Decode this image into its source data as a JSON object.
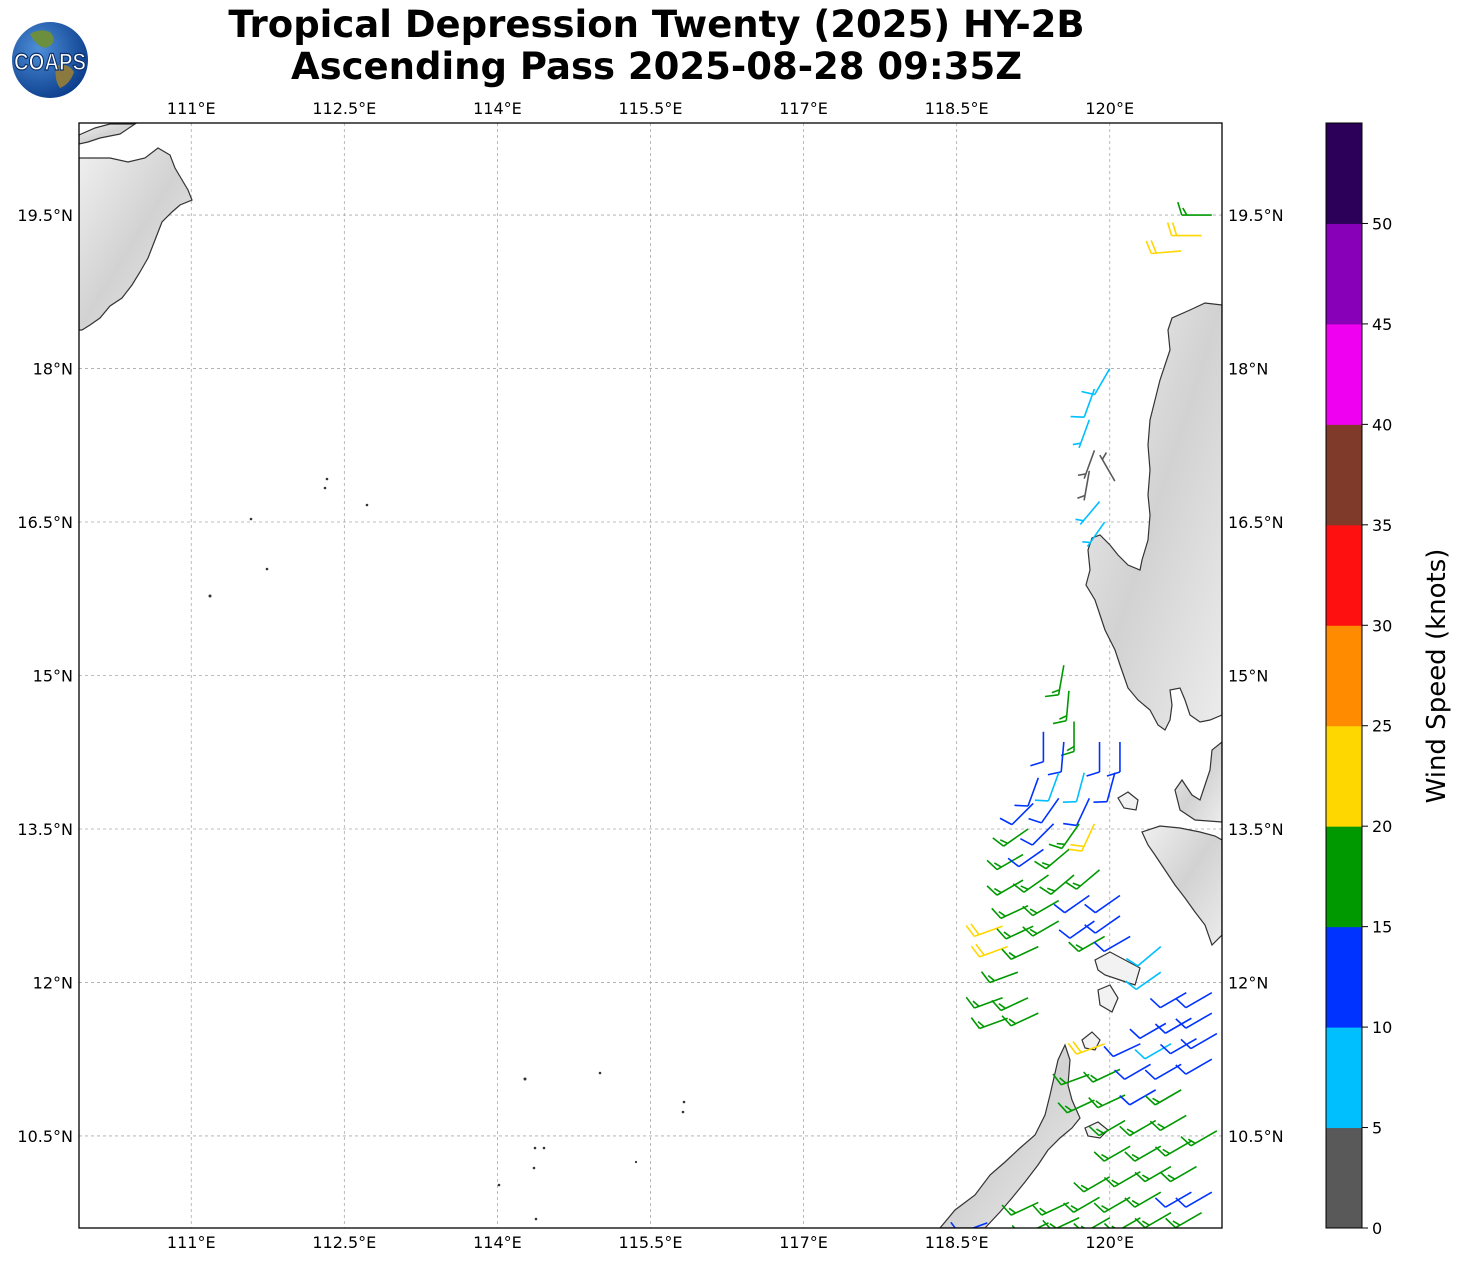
{
  "header": {
    "title_line1": "Tropical Depression Twenty (2025) HY-2B",
    "title_line2": "Ascending Pass 2025-08-28 09:35Z",
    "logo_text": "COAPS"
  },
  "map": {
    "lon_ticks": [
      "111°E",
      "112.5°E",
      "114°E",
      "115.5°E",
      "117°E",
      "118.5°E",
      "120°E"
    ],
    "lon_values": [
      111,
      112.5,
      114,
      115.5,
      117,
      118.5,
      120
    ],
    "lat_ticks": [
      "10.5°N",
      "12°N",
      "13.5°N",
      "15°N",
      "16.5°N",
      "18°N",
      "19.5°N"
    ],
    "lat_values": [
      10.5,
      12,
      13.5,
      15,
      16.5,
      18,
      19.5
    ],
    "extent": {
      "lon_min": 109.9,
      "lon_max": 121.1,
      "lat_min": 9.6,
      "lat_max": 20.4
    },
    "coast_color": "#333333",
    "land_shade": "#cccccc"
  },
  "colorbar": {
    "label": "Wind Speed (knots)",
    "tick_labels": [
      "0",
      "5",
      "10",
      "15",
      "20",
      "25",
      "30",
      "35",
      "40",
      "45",
      "50"
    ],
    "colors": [
      "#595959",
      "#00bfff",
      "#0033ff",
      "#009900",
      "#ffd700",
      "#ff8c00",
      "#ff1010",
      "#803a2a",
      "#f000f0",
      "#8800b8",
      "#2c0058"
    ]
  },
  "chart_data": {
    "type": "scatter",
    "title": "Tropical Depression Twenty (2025) HY-2B Ascending Pass 2025-08-28 09:35Z",
    "xlabel": "",
    "ylabel": "",
    "xlim": [
      109.9,
      121.1
    ],
    "ylim": [
      9.6,
      20.4
    ],
    "colorbar_label": "Wind Speed (knots)",
    "wind_barbs": [
      {
        "lon": 121.0,
        "lat": 19.5,
        "kt": 17,
        "dir": 270
      },
      {
        "lon": 120.9,
        "lat": 19.3,
        "kt": 22,
        "dir": 270
      },
      {
        "lon": 120.7,
        "lat": 19.15,
        "kt": 22,
        "dir": 265
      },
      {
        "lon": 120.0,
        "lat": 18.0,
        "kt": 8,
        "dir": 210
      },
      {
        "lon": 119.85,
        "lat": 17.8,
        "kt": 8,
        "dir": 200
      },
      {
        "lon": 119.8,
        "lat": 17.5,
        "kt": 7,
        "dir": 200
      },
      {
        "lon": 119.85,
        "lat": 17.2,
        "kt": 3,
        "dir": 200
      },
      {
        "lon": 119.8,
        "lat": 17.0,
        "kt": 3,
        "dir": 190
      },
      {
        "lon": 120.05,
        "lat": 16.9,
        "kt": 3,
        "dir": 330
      },
      {
        "lon": 119.9,
        "lat": 16.7,
        "kt": 7,
        "dir": 220
      },
      {
        "lon": 119.95,
        "lat": 16.5,
        "kt": 7,
        "dir": 215
      },
      {
        "lon": 119.55,
        "lat": 15.1,
        "kt": 17,
        "dir": 190
      },
      {
        "lon": 119.6,
        "lat": 14.85,
        "kt": 17,
        "dir": 185
      },
      {
        "lon": 119.65,
        "lat": 14.55,
        "kt": 17,
        "dir": 180
      },
      {
        "lon": 119.35,
        "lat": 14.45,
        "kt": 12,
        "dir": 180
      },
      {
        "lon": 119.55,
        "lat": 14.35,
        "kt": 12,
        "dir": 185
      },
      {
        "lon": 119.9,
        "lat": 14.35,
        "kt": 12,
        "dir": 180
      },
      {
        "lon": 120.1,
        "lat": 14.35,
        "kt": 12,
        "dir": 180
      },
      {
        "lon": 119.3,
        "lat": 14.0,
        "kt": 12,
        "dir": 200
      },
      {
        "lon": 119.5,
        "lat": 14.05,
        "kt": 8,
        "dir": 200
      },
      {
        "lon": 119.75,
        "lat": 14.05,
        "kt": 8,
        "dir": 195
      },
      {
        "lon": 120.05,
        "lat": 14.05,
        "kt": 12,
        "dir": 195
      },
      {
        "lon": 119.25,
        "lat": 13.75,
        "kt": 12,
        "dir": 225
      },
      {
        "lon": 119.5,
        "lat": 13.8,
        "kt": 12,
        "dir": 215
      },
      {
        "lon": 119.8,
        "lat": 13.8,
        "kt": 12,
        "dir": 205
      },
      {
        "lon": 119.2,
        "lat": 13.5,
        "kt": 17,
        "dir": 235
      },
      {
        "lon": 119.45,
        "lat": 13.55,
        "kt": 12,
        "dir": 225
      },
      {
        "lon": 119.7,
        "lat": 13.55,
        "kt": 17,
        "dir": 215
      },
      {
        "lon": 119.85,
        "lat": 13.55,
        "kt": 22,
        "dir": 205
      },
      {
        "lon": 119.15,
        "lat": 13.25,
        "kt": 17,
        "dir": 240
      },
      {
        "lon": 119.35,
        "lat": 13.3,
        "kt": 12,
        "dir": 235
      },
      {
        "lon": 119.6,
        "lat": 13.3,
        "kt": 17,
        "dir": 230
      },
      {
        "lon": 119.15,
        "lat": 13.0,
        "kt": 17,
        "dir": 240
      },
      {
        "lon": 119.4,
        "lat": 13.05,
        "kt": 17,
        "dir": 235
      },
      {
        "lon": 119.65,
        "lat": 13.05,
        "kt": 17,
        "dir": 230
      },
      {
        "lon": 119.9,
        "lat": 13.1,
        "kt": 17,
        "dir": 230
      },
      {
        "lon": 119.2,
        "lat": 12.75,
        "kt": 17,
        "dir": 245
      },
      {
        "lon": 119.5,
        "lat": 12.8,
        "kt": 17,
        "dir": 240
      },
      {
        "lon": 119.8,
        "lat": 12.85,
        "kt": 12,
        "dir": 235
      },
      {
        "lon": 120.1,
        "lat": 12.85,
        "kt": 12,
        "dir": 235
      },
      {
        "lon": 118.95,
        "lat": 12.55,
        "kt": 22,
        "dir": 250
      },
      {
        "lon": 119.25,
        "lat": 12.55,
        "kt": 17,
        "dir": 245
      },
      {
        "lon": 119.5,
        "lat": 12.6,
        "kt": 17,
        "dir": 240
      },
      {
        "lon": 119.85,
        "lat": 12.6,
        "kt": 12,
        "dir": 235
      },
      {
        "lon": 120.1,
        "lat": 12.65,
        "kt": 12,
        "dir": 235
      },
      {
        "lon": 119.0,
        "lat": 12.35,
        "kt": 22,
        "dir": 250
      },
      {
        "lon": 119.3,
        "lat": 12.35,
        "kt": 17,
        "dir": 245
      },
      {
        "lon": 119.95,
        "lat": 12.45,
        "kt": 17,
        "dir": 240
      },
      {
        "lon": 120.2,
        "lat": 12.45,
        "kt": 12,
        "dir": 240
      },
      {
        "lon": 120.5,
        "lat": 12.35,
        "kt": 8,
        "dir": 230
      },
      {
        "lon": 119.1,
        "lat": 12.1,
        "kt": 17,
        "dir": 250
      },
      {
        "lon": 120.5,
        "lat": 12.1,
        "kt": 8,
        "dir": 235
      },
      {
        "lon": 118.95,
        "lat": 11.85,
        "kt": 17,
        "dir": 250
      },
      {
        "lon": 119.2,
        "lat": 11.85,
        "kt": 17,
        "dir": 245
      },
      {
        "lon": 120.75,
        "lat": 11.9,
        "kt": 12,
        "dir": 240
      },
      {
        "lon": 121.0,
        "lat": 11.9,
        "kt": 12,
        "dir": 240
      },
      {
        "lon": 119.0,
        "lat": 11.65,
        "kt": 17,
        "dir": 250
      },
      {
        "lon": 119.3,
        "lat": 11.7,
        "kt": 17,
        "dir": 245
      },
      {
        "lon": 120.55,
        "lat": 11.6,
        "kt": 12,
        "dir": 240
      },
      {
        "lon": 120.8,
        "lat": 11.65,
        "kt": 12,
        "dir": 240
      },
      {
        "lon": 121.0,
        "lat": 11.7,
        "kt": 12,
        "dir": 240
      },
      {
        "lon": 119.95,
        "lat": 11.4,
        "kt": 22,
        "dir": 250
      },
      {
        "lon": 120.3,
        "lat": 11.4,
        "kt": 12,
        "dir": 245
      },
      {
        "lon": 120.6,
        "lat": 11.4,
        "kt": 8,
        "dir": 240
      },
      {
        "lon": 120.85,
        "lat": 11.45,
        "kt": 12,
        "dir": 240
      },
      {
        "lon": 121.05,
        "lat": 11.5,
        "kt": 12,
        "dir": 240
      },
      {
        "lon": 119.8,
        "lat": 11.1,
        "kt": 17,
        "dir": 250
      },
      {
        "lon": 120.1,
        "lat": 11.15,
        "kt": 17,
        "dir": 245
      },
      {
        "lon": 120.4,
        "lat": 11.2,
        "kt": 12,
        "dir": 240
      },
      {
        "lon": 120.7,
        "lat": 11.2,
        "kt": 12,
        "dir": 240
      },
      {
        "lon": 121.0,
        "lat": 11.25,
        "kt": 12,
        "dir": 240
      },
      {
        "lon": 119.85,
        "lat": 10.85,
        "kt": 17,
        "dir": 245
      },
      {
        "lon": 120.15,
        "lat": 10.9,
        "kt": 17,
        "dir": 245
      },
      {
        "lon": 120.45,
        "lat": 10.95,
        "kt": 12,
        "dir": 240
      },
      {
        "lon": 120.7,
        "lat": 10.95,
        "kt": 17,
        "dir": 240
      },
      {
        "lon": 120.15,
        "lat": 10.65,
        "kt": 17,
        "dir": 240
      },
      {
        "lon": 120.45,
        "lat": 10.65,
        "kt": 17,
        "dir": 240
      },
      {
        "lon": 120.75,
        "lat": 10.7,
        "kt": 17,
        "dir": 240
      },
      {
        "lon": 120.2,
        "lat": 10.4,
        "kt": 17,
        "dir": 240
      },
      {
        "lon": 120.5,
        "lat": 10.4,
        "kt": 17,
        "dir": 240
      },
      {
        "lon": 120.8,
        "lat": 10.45,
        "kt": 17,
        "dir": 240
      },
      {
        "lon": 121.05,
        "lat": 10.55,
        "kt": 17,
        "dir": 240
      },
      {
        "lon": 120.0,
        "lat": 10.1,
        "kt": 17,
        "dir": 240
      },
      {
        "lon": 120.3,
        "lat": 10.15,
        "kt": 17,
        "dir": 240
      },
      {
        "lon": 120.6,
        "lat": 10.2,
        "kt": 17,
        "dir": 240
      },
      {
        "lon": 120.85,
        "lat": 10.2,
        "kt": 17,
        "dir": 240
      },
      {
        "lon": 119.3,
        "lat": 9.85,
        "kt": 17,
        "dir": 245
      },
      {
        "lon": 119.6,
        "lat": 9.85,
        "kt": 17,
        "dir": 245
      },
      {
        "lon": 119.9,
        "lat": 9.9,
        "kt": 17,
        "dir": 240
      },
      {
        "lon": 120.2,
        "lat": 9.9,
        "kt": 17,
        "dir": 240
      },
      {
        "lon": 120.5,
        "lat": 9.95,
        "kt": 17,
        "dir": 240
      },
      {
        "lon": 120.8,
        "lat": 9.95,
        "kt": 12,
        "dir": 240
      },
      {
        "lon": 121.0,
        "lat": 9.95,
        "kt": 12,
        "dir": 240
      },
      {
        "lon": 118.8,
        "lat": 9.65,
        "kt": 12,
        "dir": 250
      },
      {
        "lon": 119.4,
        "lat": 9.65,
        "kt": 17,
        "dir": 245
      },
      {
        "lon": 119.7,
        "lat": 9.7,
        "kt": 17,
        "dir": 245
      },
      {
        "lon": 120.0,
        "lat": 9.7,
        "kt": 17,
        "dir": 240
      },
      {
        "lon": 120.3,
        "lat": 9.7,
        "kt": 17,
        "dir": 240
      },
      {
        "lon": 120.6,
        "lat": 9.75,
        "kt": 17,
        "dir": 240
      },
      {
        "lon": 120.9,
        "lat": 9.75,
        "kt": 17,
        "dir": 240
      }
    ]
  }
}
